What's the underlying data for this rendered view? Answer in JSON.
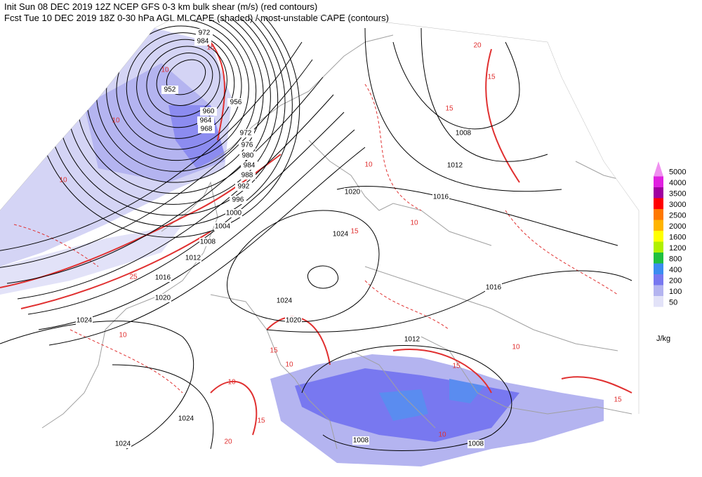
{
  "header": {
    "line1": "Init  Sun 08 DEC 2019 12Z  NCEP GFS 0-3 km bulk shear (m/s) (red contours)",
    "line2": "Fcst Tue 10 DEC 2019 18Z  0-30 hPa AGL MLCAPE (shaded) / most-unstable CAPE (contours)"
  },
  "pressure_labels": [
    972,
    984,
    952,
    956,
    960,
    964,
    968,
    972,
    976,
    980,
    984,
    988,
    992,
    996,
    1000,
    1004,
    1008,
    1012,
    1016,
    1020,
    1024,
    1024,
    1024,
    1020,
    1024,
    1024,
    1020,
    1016,
    1012,
    1008,
    1012,
    1016,
    1008,
    1008
  ],
  "shear_labels": [
    10,
    10,
    15,
    10,
    15,
    10,
    10,
    15,
    20,
    15,
    10,
    15,
    10,
    15,
    10,
    20,
    15,
    10,
    15,
    10,
    25
  ],
  "legend": {
    "unit": "J/kg",
    "items": [
      {
        "label": 5000,
        "color": "#f090f0"
      },
      {
        "label": 4000,
        "color": "#e020e0"
      },
      {
        "label": 3500,
        "color": "#a000a0"
      },
      {
        "label": 3000,
        "color": "#ff0000"
      },
      {
        "label": 2500,
        "color": "#ff7800"
      },
      {
        "label": 2000,
        "color": "#ffb400"
      },
      {
        "label": 1600,
        "color": "#ffff00"
      },
      {
        "label": 1200,
        "color": "#b0f000"
      },
      {
        "label": 800,
        "color": "#20c040"
      },
      {
        "label": 400,
        "color": "#3c8cf0"
      },
      {
        "label": 200,
        "color": "#7878f0"
      },
      {
        "label": 100,
        "color": "#b4b4f0"
      },
      {
        "label": 50,
        "color": "#e2e2f8"
      }
    ]
  }
}
